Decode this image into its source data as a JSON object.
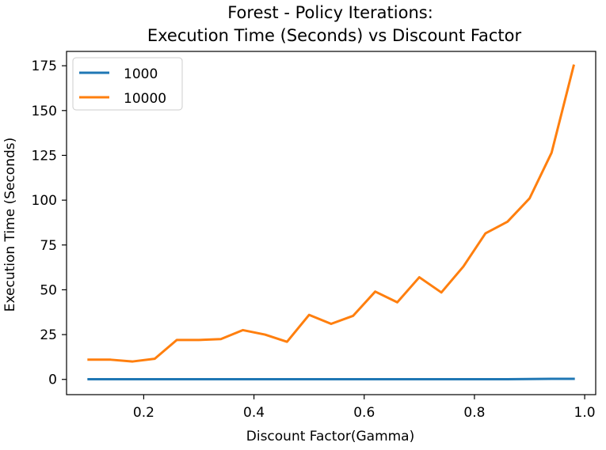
{
  "chart_data": {
    "type": "line",
    "title": "Forest - Policy Iterations:",
    "subtitle": "Execution Time (Seconds) vs Discount Factor",
    "xlabel": "Discount Factor(Gamma)",
    "ylabel": "Execution Time (Seconds)",
    "xlim": [
      0.06,
      1.02
    ],
    "ylim": [
      -8.5,
      183
    ],
    "xticks": [
      0.2,
      0.4,
      0.6,
      0.8,
      1.0
    ],
    "xtick_labels": [
      "0.2",
      "0.4",
      "0.6",
      "0.8",
      "1.0"
    ],
    "yticks": [
      0,
      25,
      50,
      75,
      100,
      125,
      150,
      175
    ],
    "ytick_labels": [
      "0",
      "25",
      "50",
      "75",
      "100",
      "125",
      "150",
      "175"
    ],
    "grid": false,
    "legend_position": "top-left",
    "x": [
      0.1,
      0.14,
      0.18,
      0.22,
      0.26,
      0.3,
      0.34,
      0.38,
      0.42,
      0.46,
      0.5,
      0.54,
      0.58,
      0.62,
      0.66,
      0.7,
      0.74,
      0.78,
      0.82,
      0.86,
      0.9,
      0.94,
      0.98
    ],
    "series": [
      {
        "name": "1000",
        "color": "#1f77b4",
        "values": [
          0.1,
          0.1,
          0.1,
          0.1,
          0.1,
          0.1,
          0.1,
          0.1,
          0.1,
          0.1,
          0.1,
          0.1,
          0.1,
          0.1,
          0.1,
          0.1,
          0.1,
          0.1,
          0.1,
          0.1,
          0.2,
          0.3,
          0.3
        ]
      },
      {
        "name": "10000",
        "color": "#ff7f0e",
        "values": [
          11,
          11,
          10,
          11.5,
          22,
          22,
          22.5,
          27.5,
          25,
          21,
          36,
          31,
          35.5,
          49,
          43,
          57,
          48.5,
          63,
          81.5,
          88,
          101,
          126.5,
          175
        ]
      }
    ]
  }
}
